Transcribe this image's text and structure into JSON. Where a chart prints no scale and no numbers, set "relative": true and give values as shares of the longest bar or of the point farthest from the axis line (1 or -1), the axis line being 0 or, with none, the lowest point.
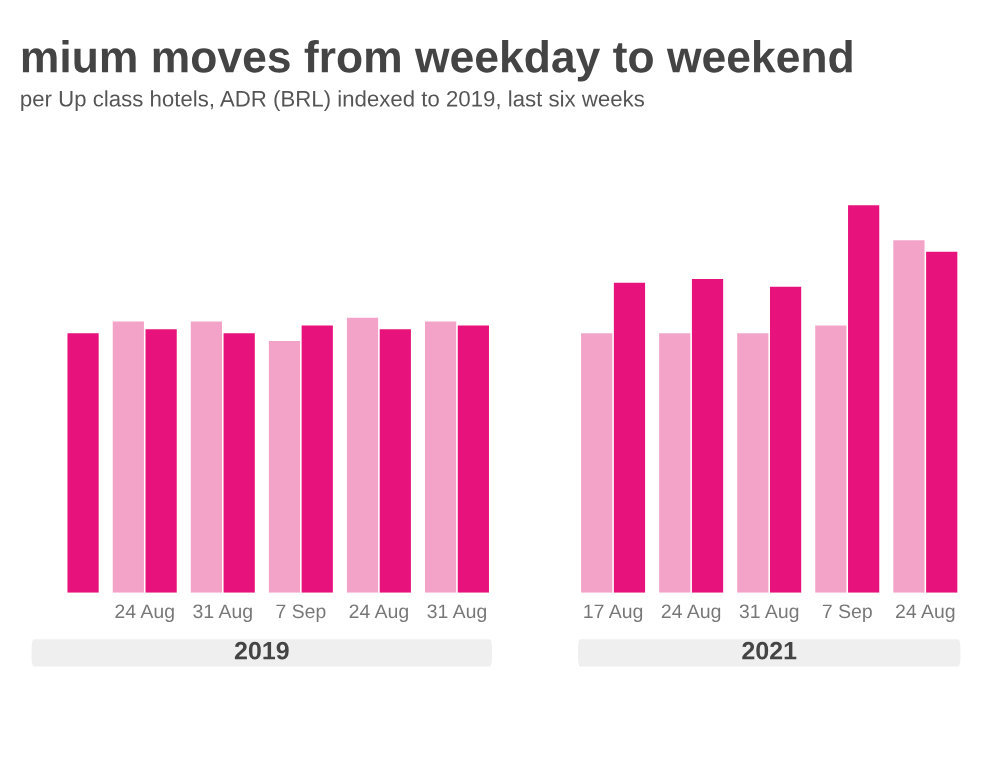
{
  "chart_data": {
    "type": "bar",
    "relative": true,
    "title": "mium moves from weekday to weekend",
    "subtitle": "per Up class hotels, ADR (BRL) indexed to 2019, last six weeks",
    "categories": [
      null,
      "24 Aug",
      "31 Aug",
      "7 Sep",
      "24 Aug",
      "31 Aug",
      null,
      "17 Aug",
      "24 Aug",
      "31 Aug",
      "7 Sep",
      "24 Aug"
    ],
    "series": [
      {
        "color": "#f4a3c8",
        "values": [
          null,
          0.7,
          0.7,
          0.65,
          0.71,
          0.7,
          null,
          0.67,
          0.67,
          0.67,
          0.69,
          0.91
        ]
      },
      {
        "color": "#e8127c",
        "values": [
          0.67,
          0.68,
          0.67,
          0.69,
          0.68,
          0.69,
          null,
          0.8,
          0.81,
          0.79,
          1.0,
          0.88
        ]
      }
    ],
    "annotations": [
      "2019",
      "2021"
    ],
    "grid": false,
    "legend": false
  }
}
